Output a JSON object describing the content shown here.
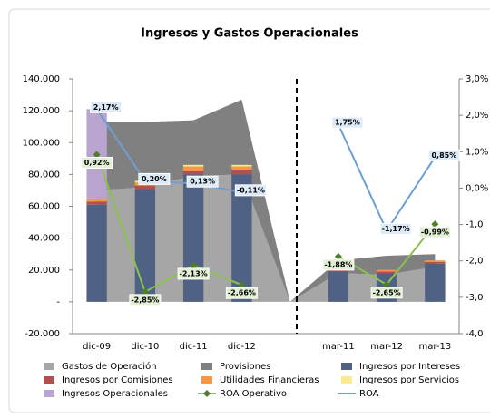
{
  "chart_data": {
    "type": "combo",
    "title": "Ingresos y Gastos Operacionales",
    "categories": [
      "dic-09",
      "dic-10",
      "dic-11",
      "dic-12",
      null,
      "mar-11",
      "mar-12",
      "mar-13"
    ],
    "ylim": [
      -20000,
      140000
    ],
    "yticks": [
      {
        "value": 140000,
        "label": "140.000"
      },
      {
        "value": 120000,
        "label": "120.000"
      },
      {
        "value": 100000,
        "label": "100.000"
      },
      {
        "value": 80000,
        "label": "80.000"
      },
      {
        "value": 60000,
        "label": "60.000"
      },
      {
        "value": 40000,
        "label": "40.000"
      },
      {
        "value": 20000,
        "label": "20.000"
      },
      {
        "value": 0,
        "label": "-"
      },
      {
        "value": -20000,
        "label": "-20.000"
      }
    ],
    "y2lim": [
      -4,
      3
    ],
    "y2ticks": [
      {
        "value": 3,
        "label": "3,0%"
      },
      {
        "value": 2,
        "label": "2,0%"
      },
      {
        "value": 1,
        "label": "1,0%"
      },
      {
        "value": 0,
        "label": "0,0%"
      },
      {
        "value": -1,
        "label": "-1,0"
      },
      {
        "value": -2,
        "label": "-2,0"
      },
      {
        "value": -3,
        "label": "-3,0"
      },
      {
        "value": -4,
        "label": "-4,0"
      }
    ],
    "grid": false,
    "legend": "bottom",
    "series": [
      {
        "name": "Gastos de Operación",
        "type": "area",
        "color": "#a6a6a6",
        "values": [
          70000,
          72000,
          79000,
          80000,
          0,
          18000,
          17000,
          22000
        ]
      },
      {
        "name": "Provisiones",
        "type": "area",
        "color": "#808080",
        "values": [
          43000,
          41000,
          35000,
          47000,
          0,
          8000,
          12000,
          8000
        ]
      },
      {
        "name": "Ingresos por Intereses",
        "type": "bar",
        "color": "#4f6283",
        "values": [
          61000,
          71000,
          80000,
          80000,
          null,
          19000,
          18000,
          24000
        ]
      },
      {
        "name": "Ingresos por Comisiones",
        "type": "bar",
        "color": "#b05050",
        "values": [
          2000,
          2000,
          2000,
          3000,
          null,
          1000,
          1000,
          1000
        ]
      },
      {
        "name": "Utilidades Financieras",
        "type": "bar",
        "color": "#f79646",
        "values": [
          2000,
          2000,
          3000,
          2000,
          null,
          0,
          1000,
          1000
        ]
      },
      {
        "name": "Ingresos por Servicios",
        "type": "bar",
        "color": "#fde98e",
        "values": [
          0,
          1000,
          1000,
          1000,
          null,
          0,
          0,
          0
        ]
      },
      {
        "name": "Ingresos Operacionales",
        "type": "bar",
        "color": "#b9a3cf",
        "values": [
          56000,
          0,
          0,
          0,
          null,
          0,
          0,
          0
        ]
      },
      {
        "name": "ROA Operativo",
        "type": "line",
        "axis": "y2",
        "marker": "diamond",
        "color": "#8cc152",
        "values": [
          0.92,
          -2.85,
          -2.13,
          -2.66,
          null,
          -1.88,
          -2.65,
          -0.99
        ],
        "value_labels": [
          "0,92%",
          "-2,85%",
          "-2,13%",
          "-2,66%",
          null,
          "-1,88%",
          "-2,65%",
          "-0,99%"
        ]
      },
      {
        "name": "ROA",
        "type": "line",
        "axis": "y2",
        "color": "#6a9fd8",
        "values": [
          2.17,
          0.2,
          0.13,
          -0.11,
          null,
          1.75,
          -1.17,
          0.85
        ],
        "value_labels": [
          "2,17%",
          "0,20%",
          "0,13%",
          "-0,11%",
          null,
          "1,75%",
          "-1,17%",
          "0,85%"
        ]
      }
    ]
  }
}
